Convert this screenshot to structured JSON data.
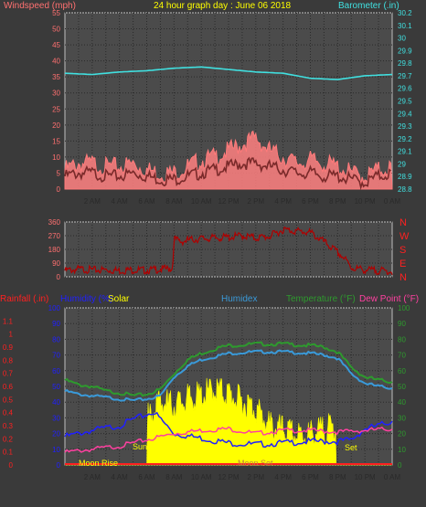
{
  "chart_data": [
    {
      "type": "line",
      "title": "24 hour graph day : June 06 2018",
      "ylabel": "Windspeed (mph)",
      "y2label": "Barometer (.in)",
      "x_ticks": [
        "2 AM",
        "4 AM",
        "6 AM",
        "8 AM",
        "10 AM",
        "12 PM",
        "2 PM",
        "4 PM",
        "6 PM",
        "8 PM",
        "10 PM",
        "0 AM"
      ],
      "xlim": [
        0,
        24
      ],
      "ylim": [
        0,
        55
      ],
      "y_ticks": [
        0,
        5,
        10,
        15,
        20,
        25,
        30,
        35,
        40,
        45,
        50,
        55
      ],
      "y2lim": [
        28.8,
        30.2
      ],
      "y2_ticks": [
        "28.8",
        "28.9",
        "29",
        "29.1",
        "29.2",
        "29.3",
        "29.4",
        "29.5",
        "29.6",
        "29.7",
        "29.8",
        "29.9",
        "30",
        "30.1",
        "30.2"
      ],
      "grid": true,
      "colors": {
        "gust": "#ff7a7a",
        "wind": "#7a2a2a",
        "barometer": "#40e0e0",
        "left_axis": "#ff7070",
        "right_axis": "#40e0e0",
        "title": "#ffff00"
      },
      "series": [
        {
          "name": "Windspeed (mph)",
          "x": [
            0,
            1,
            2,
            3,
            4,
            5,
            6,
            7,
            8,
            9,
            10,
            11,
            12,
            13,
            14,
            15,
            16,
            17,
            18,
            19,
            20,
            21,
            22,
            23,
            24
          ],
          "values": [
            4,
            5,
            5,
            4,
            4,
            5,
            4,
            3,
            3,
            4,
            5,
            6,
            7,
            8,
            8,
            7,
            6,
            5,
            5,
            4,
            4,
            3,
            2,
            4,
            5
          ]
        },
        {
          "x": [
            0,
            1,
            2,
            3,
            4,
            5,
            6,
            7,
            8,
            9,
            10,
            11,
            12,
            13,
            14,
            15,
            16,
            17,
            18,
            19,
            20,
            21,
            22,
            23,
            24
          ],
          "values": [
            6,
            8,
            8,
            7,
            7,
            8,
            6,
            5,
            5,
            7,
            9,
            10,
            12,
            14,
            16,
            12,
            10,
            8,
            9,
            8,
            7,
            5,
            4,
            6,
            7
          ]
        },
        {
          "name": "Barometer (.in)",
          "x": [
            0,
            2,
            4,
            6,
            8,
            10,
            12,
            14,
            16,
            18,
            20,
            22,
            24
          ],
          "values": [
            29.72,
            29.71,
            29.73,
            29.74,
            29.76,
            29.77,
            29.75,
            29.73,
            29.72,
            29.68,
            29.67,
            29.7,
            29.71
          ]
        }
      ]
    },
    {
      "type": "scatter",
      "right_labels": [
        "N",
        "W",
        "S",
        "E",
        "N"
      ],
      "xlim": [
        0,
        24
      ],
      "ylim": [
        0,
        360
      ],
      "y_ticks": [
        0,
        90,
        180,
        270,
        360
      ],
      "grid": true,
      "colors": {
        "direction": "#b00000",
        "labels": "#ff2020"
      },
      "series": [
        {
          "x": [
            0,
            1,
            2,
            3,
            4,
            5,
            6,
            7,
            7.9,
            8,
            8.5,
            9,
            10,
            11,
            12,
            13,
            14,
            15,
            16,
            17,
            18,
            19,
            20,
            20.5,
            21,
            22,
            23,
            24
          ],
          "values": [
            40,
            50,
            45,
            45,
            40,
            45,
            42,
            50,
            55,
            250,
            230,
            240,
            250,
            255,
            260,
            270,
            255,
            265,
            310,
            300,
            290,
            230,
            160,
            120,
            60,
            45,
            40,
            35
          ]
        }
      ]
    },
    {
      "type": "line",
      "left_titles": [
        "Rainfall (.in)",
        "Humidity (%)",
        "Solar",
        "Humidex",
        "Temperature (°F)",
        "Dew Point (°F)"
      ],
      "xlim": [
        0,
        24
      ],
      "ylim_humidity": [
        0,
        100
      ],
      "y_ticks_humidity": [
        0,
        10,
        20,
        30,
        40,
        50,
        60,
        70,
        80,
        90,
        100
      ],
      "ylim_rain": [
        0,
        1.2
      ],
      "y_ticks_rain": [
        "0",
        "0.1",
        "0.2",
        "0.3",
        "0.4",
        "0.5",
        "0.6",
        "0.7",
        "0.8",
        "0.9",
        "1",
        "1.1"
      ],
      "y2lim": [
        0,
        100
      ],
      "y2_ticks": [
        0,
        10,
        20,
        30,
        40,
        50,
        60,
        70,
        80,
        90,
        100
      ],
      "grid": true,
      "annotations": [
        "Sun",
        "Set",
        "Moon Rise",
        "Moon Set"
      ],
      "colors": {
        "rain": "#ff2020",
        "humidity": "#2020ff",
        "solar": "#ffff00",
        "humidex": "#3a9ad9",
        "temperature": "#2e9a2e",
        "dewpoint": "#ff40a0",
        "moon": "#c08040"
      },
      "series": [
        {
          "name": "Humidity (%)",
          "x": [
            0,
            2,
            4,
            5,
            6,
            6.5,
            8,
            10,
            12,
            14,
            16,
            18,
            20,
            21,
            22,
            23,
            24
          ],
          "values": [
            18,
            22,
            25,
            29,
            32,
            34,
            20,
            17,
            14,
            13,
            14,
            15,
            15,
            16,
            23,
            25,
            28
          ]
        },
        {
          "name": "Temperature (°F)",
          "x": [
            0,
            1,
            2,
            3,
            4,
            5,
            6,
            7,
            8,
            9,
            10,
            11,
            12,
            14,
            16,
            18,
            19,
            20,
            21,
            22,
            23,
            24
          ],
          "values": [
            54,
            51,
            50,
            47,
            46,
            44,
            45,
            48,
            58,
            67,
            71,
            74,
            76,
            77,
            77,
            76,
            75,
            72,
            62,
            56,
            54,
            53
          ]
        },
        {
          "name": "Humidex",
          "x": [
            0,
            1,
            2,
            3,
            4,
            5,
            6,
            7,
            8,
            9,
            10,
            11,
            12,
            14,
            16,
            18,
            19,
            20,
            21,
            22,
            23,
            24
          ],
          "values": [
            47,
            45,
            44,
            43,
            42,
            41,
            42,
            44,
            56,
            63,
            67,
            69,
            71,
            72,
            72,
            71,
            70,
            68,
            58,
            52,
            50,
            49
          ]
        },
        {
          "name": "Dew Point (°F)",
          "x": [
            0,
            2,
            4,
            6,
            8,
            10,
            12,
            14,
            16,
            18,
            20,
            22,
            24
          ],
          "values": [
            8,
            10,
            12,
            16,
            20,
            22,
            23,
            20,
            22,
            22,
            21,
            22,
            23
          ]
        },
        {
          "name": "Solar",
          "x": [
            0,
            6,
            6.1,
            7,
            8,
            9,
            10,
            11,
            12,
            13,
            14,
            15,
            16,
            17,
            18,
            19,
            19.9,
            20,
            24
          ],
          "values": [
            0,
            0,
            30,
            40,
            38,
            42,
            44,
            48,
            45,
            40,
            36,
            25,
            22,
            18,
            20,
            22,
            25,
            0,
            0
          ]
        },
        {
          "name": "Rainfall (.in)",
          "x": [
            0,
            24
          ],
          "values": [
            0,
            0
          ]
        }
      ]
    }
  ]
}
